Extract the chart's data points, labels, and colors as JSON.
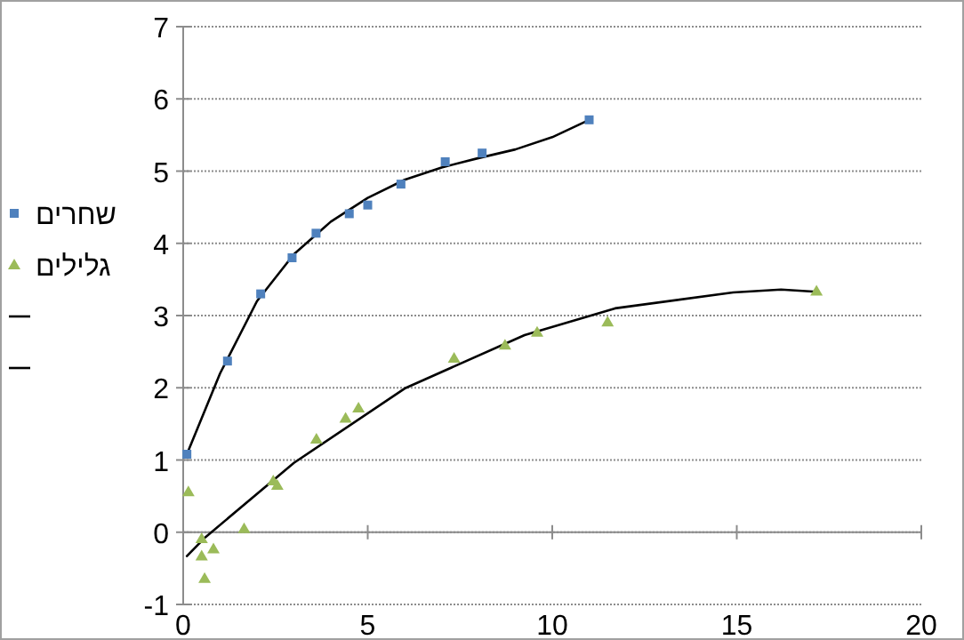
{
  "chart_data": {
    "type": "scatter",
    "xlim": [
      0,
      20
    ],
    "xticks": [
      0,
      5,
      10,
      15,
      20
    ],
    "ylim": [
      -1,
      7
    ],
    "yticks": [
      -1,
      0,
      1,
      2,
      3,
      4,
      5,
      6,
      7
    ],
    "grid": "y",
    "legend": "left",
    "series": [
      {
        "name": "שחרים",
        "color": "#4f81bd",
        "marker": "square",
        "x": [
          0.1,
          1.2,
          2.1,
          2.95,
          3.6,
          4.5,
          5.0,
          5.9,
          7.1,
          8.1,
          11.0
        ],
        "values": [
          1.08,
          2.37,
          3.3,
          3.8,
          4.14,
          4.41,
          4.53,
          4.82,
          5.13,
          5.25,
          5.71
        ]
      },
      {
        "name": "גלילים",
        "color": "#9bbb59",
        "marker": "triangle",
        "x": [
          0.14,
          0.5,
          0.5,
          0.82,
          0.58,
          1.65,
          2.44,
          2.55,
          3.61,
          4.4,
          4.75,
          7.34,
          8.72,
          9.59,
          11.5,
          17.16
        ],
        "values": [
          0.56,
          -0.09,
          -0.33,
          -0.23,
          -0.64,
          0.05,
          0.71,
          0.65,
          1.29,
          1.58,
          1.72,
          2.41,
          2.59,
          2.77,
          2.91,
          3.34
        ]
      },
      {
        "type": "line",
        "color": "#000000",
        "marker": "none",
        "x": [
          0.1,
          1,
          2,
          3,
          4,
          5,
          6,
          7,
          8,
          9,
          10,
          11
        ],
        "values": [
          1.08,
          2.2,
          3.2,
          3.85,
          4.3,
          4.63,
          4.88,
          5.05,
          5.18,
          5.3,
          5.47,
          5.71
        ]
      },
      {
        "type": "line",
        "color": "#000000",
        "marker": "none",
        "x": [
          0.1,
          0.6,
          3,
          6,
          9.25,
          11.7,
          14.9,
          16.2,
          17.16
        ],
        "values": [
          -0.33,
          -0.07,
          0.96,
          1.99,
          2.73,
          3.1,
          3.32,
          3.36,
          3.33
        ]
      }
    ]
  }
}
